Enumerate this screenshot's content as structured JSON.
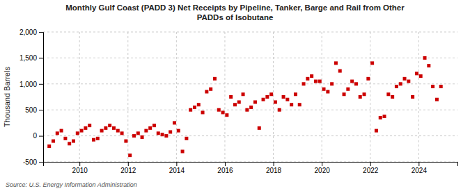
{
  "chart_data": {
    "type": "scatter",
    "title": "Monthly Gulf Coast (PADD 3) Net Receipts by Pipeline, Tanker, Barge and Rail from Other\nPADDs of Isobutane",
    "y_label": "Thousand Barrels",
    "source": "Source: U.S. Energy Information Administration",
    "color": "#cc0000",
    "marker": "square",
    "grid": true,
    "xlim": [
      2008.5,
      2025.6
    ],
    "xticks": [
      2010,
      2012,
      2014,
      2016,
      2018,
      2020,
      2022,
      2024
    ],
    "ylim": [
      -500,
      2000
    ],
    "yticks": [
      -500,
      0,
      500,
      {
        "value": 1000,
        "label": "1,000"
      },
      {
        "value": 1500,
        "label": "1,500"
      },
      {
        "value": 2000,
        "label": "2,000"
      }
    ],
    "x": [
      2008.75,
      2008.917,
      2009.083,
      2009.25,
      2009.417,
      2009.583,
      2009.75,
      2009.917,
      2010.083,
      2010.25,
      2010.417,
      2010.583,
      2010.75,
      2010.917,
      2011.083,
      2011.25,
      2011.417,
      2011.583,
      2011.75,
      2011.917,
      2012.083,
      2012.25,
      2012.417,
      2012.583,
      2012.75,
      2012.917,
      2013.083,
      2013.25,
      2013.417,
      2013.583,
      2013.75,
      2013.917,
      2014.083,
      2014.25,
      2014.417,
      2014.583,
      2014.75,
      2014.917,
      2015.083,
      2015.25,
      2015.417,
      2015.583,
      2015.75,
      2015.917,
      2016.083,
      2016.25,
      2016.417,
      2016.583,
      2016.75,
      2016.917,
      2017.083,
      2017.25,
      2017.417,
      2017.583,
      2017.75,
      2017.917,
      2018.083,
      2018.25,
      2018.417,
      2018.583,
      2018.75,
      2018.917,
      2019.083,
      2019.25,
      2019.417,
      2019.583,
      2019.75,
      2019.917,
      2020.083,
      2020.25,
      2020.417,
      2020.583,
      2020.75,
      2020.917,
      2021.083,
      2021.25,
      2021.417,
      2021.583,
      2021.75,
      2021.917,
      2022.083,
      2022.25,
      2022.417,
      2022.583,
      2022.75,
      2022.917,
      2023.083,
      2023.25,
      2023.417,
      2023.583,
      2023.75,
      2023.917,
      2024.083,
      2024.25,
      2024.417,
      2024.583,
      2024.75,
      2024.917
    ],
    "values": [
      -200,
      -100,
      50,
      100,
      -50,
      -150,
      -100,
      50,
      100,
      150,
      200,
      -75,
      -50,
      100,
      150,
      200,
      150,
      100,
      50,
      -100,
      -375,
      0,
      50,
      -25,
      100,
      150,
      200,
      50,
      25,
      0,
      75,
      250,
      100,
      -300,
      -50,
      500,
      550,
      600,
      450,
      850,
      900,
      1100,
      500,
      450,
      400,
      750,
      600,
      650,
      800,
      500,
      550,
      650,
      150,
      700,
      750,
      800,
      650,
      500,
      750,
      700,
      600,
      800,
      600,
      1000,
      1100,
      1150,
      1050,
      1050,
      900,
      850,
      1000,
      1400,
      1250,
      800,
      900,
      1050,
      1000,
      750,
      800,
      1100,
      1400,
      100,
      350,
      375,
      800,
      750,
      950,
      1000,
      1100,
      1050,
      750,
      1200,
      1150,
      1500,
      1350,
      950,
      700,
      950
    ]
  }
}
